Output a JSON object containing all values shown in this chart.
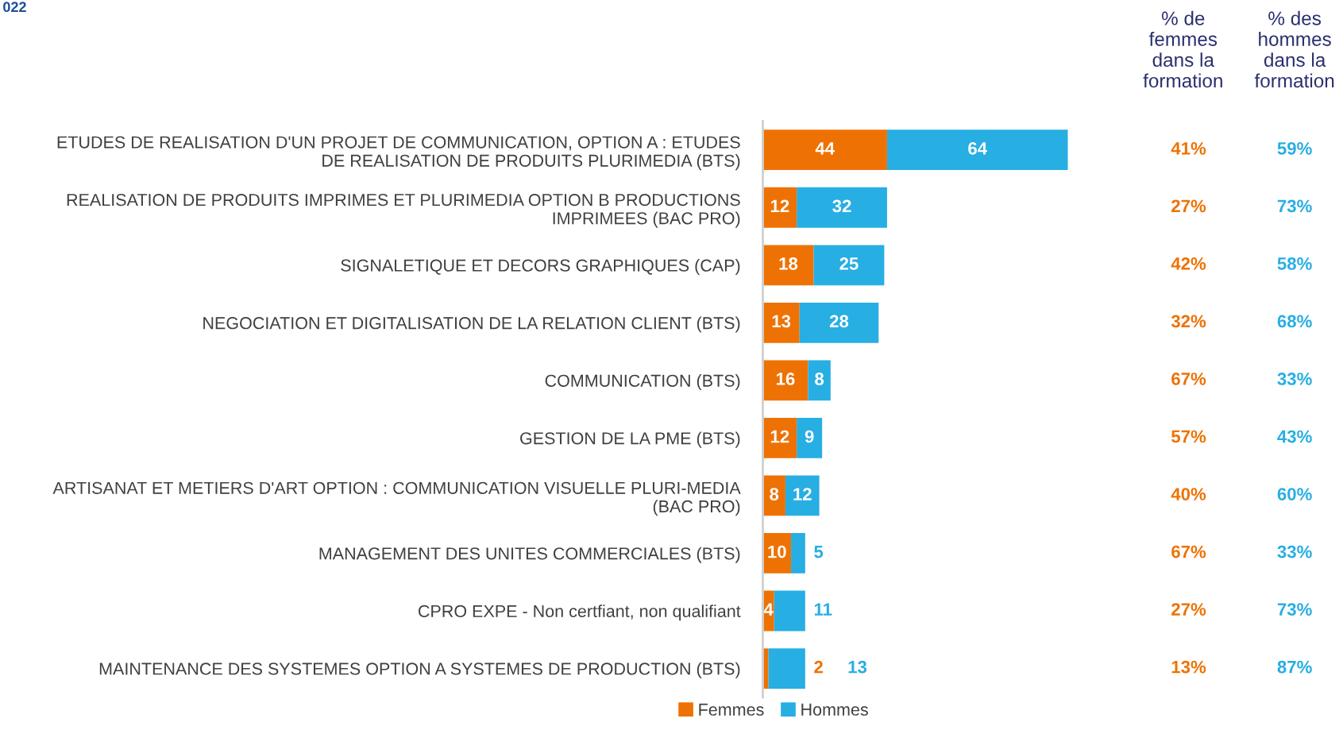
{
  "chart_data": {
    "type": "bar",
    "orientation": "horizontal",
    "stacked": true,
    "categories": [
      "ETUDES DE REALISATION D'UN PROJET DE COMMUNICATION, OPTION A : ETUDES DE REALISATION DE PRODUITS PLURIMEDIA (BTS)",
      "REALISATION DE PRODUITS IMPRIMES ET PLURIMEDIA OPTION B PRODUCTIONS IMPRIMEES (BAC PRO)",
      "SIGNALETIQUE ET DECORS GRAPHIQUES (CAP)",
      "NEGOCIATION ET DIGITALISATION DE LA RELATION CLIENT (BTS)",
      "COMMUNICATION (BTS)",
      "GESTION DE LA PME (BTS)",
      "ARTISANAT ET METIERS D'ART OPTION : COMMUNICATION VISUELLE PLURI-MEDIA (BAC PRO)",
      "MANAGEMENT DES UNITES COMMERCIALES (BTS)",
      "CPRO EXPE - Non certfiant, non qualifiant",
      "MAINTENANCE DES SYSTEMES OPTION A SYSTEMES DE PRODUCTION (BTS)"
    ],
    "series": [
      {
        "name": "Femmes",
        "color": "#ee7203",
        "values": [
          44,
          12,
          18,
          13,
          16,
          12,
          8,
          10,
          4,
          2
        ]
      },
      {
        "name": "Hommes",
        "color": "#27aee3",
        "values": [
          64,
          32,
          25,
          28,
          8,
          9,
          12,
          5,
          11,
          13
        ]
      }
    ],
    "data_labels": true,
    "legend": "bottom",
    "grid": false,
    "annotations": [
      "022",
      "% de femmes dans la formation",
      "% des hommes dans la formation",
      "41%",
      "59%",
      "27%",
      "73%",
      "42%",
      "58%",
      "32%",
      "68%",
      "67%",
      "33%",
      "57%",
      "43%",
      "40%",
      "60%",
      "67%",
      "33%",
      "27%",
      "73%",
      "13%",
      "87%"
    ]
  }
}
